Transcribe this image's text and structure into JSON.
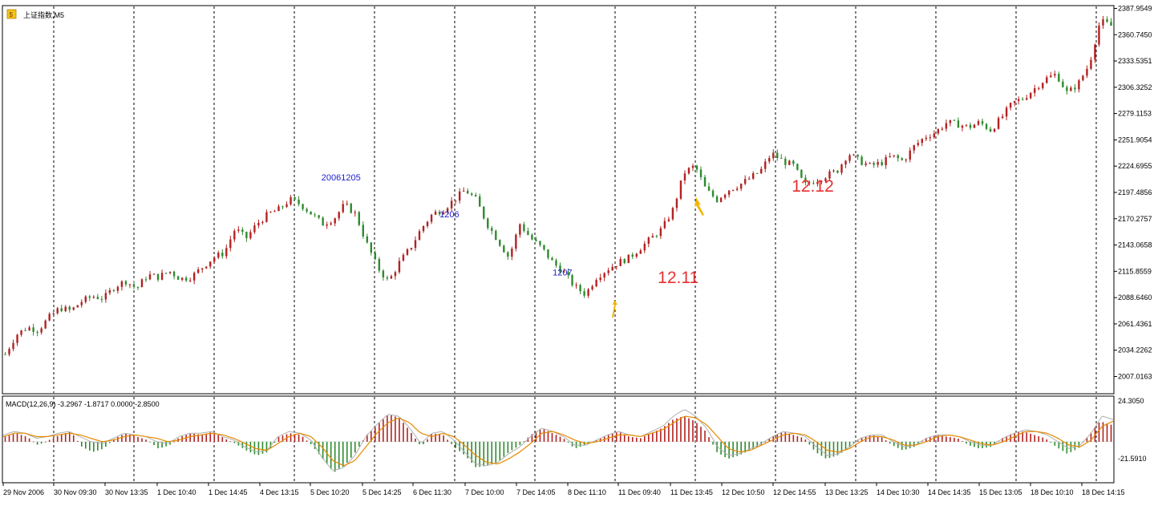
{
  "window": {
    "symbol_title": "上证指数,M5"
  },
  "colors": {
    "up": "#b22222",
    "down": "#2e8b2e",
    "signal_line": "#e68a00",
    "macd_line": "#b0b0b0",
    "annotation_red": "#e83030",
    "annotation_blue": "#2020d0",
    "arrow": "#f2b400",
    "grid": "#000000"
  },
  "chart_data": [
    {
      "type": "candlestick",
      "symbol": "上证指数",
      "timeframe": "M5",
      "y_ticks": [
        "2387.9549",
        "2360.7450",
        "2333.5351",
        "2306.3252",
        "2279.1153",
        "2251.9054",
        "2224.6955",
        "2197.4856",
        "2170.2757",
        "2143.0658",
        "2115.8559",
        "2088.6460",
        "2061.4361",
        "2034.2262",
        "2007.0163"
      ],
      "ylim": [
        1990,
        2390
      ],
      "x_ticks": [
        "29 Nov 2006",
        "30 Nov 09:30",
        "30 Nov 13:35",
        "1 Dec 10:40",
        "1 Dec 14:45",
        "4 Dec 13:15",
        "5 Dec 10:20",
        "5 Dec 14:25",
        "6 Dec 11:30",
        "7 Dec 10:00",
        "7 Dec 14:05",
        "8 Dec 11:10",
        "11 Dec 09:40",
        "11 Dec 13:45",
        "12 Dec 10:50",
        "12 Dec 14:55",
        "13 Dec 13:25",
        "14 Dec 10:30",
        "14 Dec 14:35",
        "15 Dec 13:05",
        "18 Dec 10:10",
        "18 Dec 14:15"
      ],
      "close_path": [
        2030,
        2050,
        2058,
        2055,
        2068,
        2078,
        2075,
        2085,
        2090,
        2088,
        2100,
        2106,
        2098,
        2112,
        2110,
        2116,
        2108,
        2110,
        2120,
        2130,
        2135,
        2160,
        2150,
        2165,
        2175,
        2180,
        2190,
        2185,
        2175,
        2165,
        2170,
        2185,
        2175,
        2145,
        2120,
        2105,
        2125,
        2140,
        2160,
        2175,
        2180,
        2190,
        2200,
        2190,
        2165,
        2148,
        2130,
        2165,
        2150,
        2140,
        2125,
        2115,
        2100,
        2092,
        2110,
        2118,
        2125,
        2130,
        2140,
        2150,
        2160,
        2180,
        2218,
        2225,
        2200,
        2190,
        2200,
        2205,
        2212,
        2220,
        2238,
        2230,
        2225,
        2205,
        2210,
        2215,
        2220,
        2238,
        2230,
        2225,
        2228,
        2235,
        2230,
        2245,
        2255,
        2260,
        2270,
        2268,
        2265,
        2270,
        2262,
        2275,
        2290,
        2295,
        2305,
        2315,
        2320,
        2300,
        2310,
        2330,
        2375,
        2370
      ],
      "annotations": [
        {
          "text": "20061205",
          "index": 31
        },
        {
          "text": "1206",
          "index": 40
        },
        {
          "text": "1207",
          "index": 50
        },
        {
          "text": "12.11",
          "index": 60
        },
        {
          "text": "12.12",
          "index": 70
        }
      ],
      "grid": "vertical dashed"
    },
    {
      "type": "macd",
      "label": "MACD(12,26,9) -3.2967 -1.8717 0.0000 -2.8500",
      "y_ticks": [
        "24.3050",
        "-21.5910"
      ],
      "ylim": [
        -21.591,
        24.305
      ],
      "histogram": [
        3,
        5,
        3,
        -2,
        1,
        4,
        6,
        -3,
        -6,
        -4,
        2,
        5,
        3,
        1,
        -4,
        -2,
        3,
        5,
        4,
        6,
        2,
        -1,
        -5,
        -8,
        -6,
        3,
        5,
        4,
        -2,
        -10,
        -18,
        -14,
        -6,
        4,
        10,
        16,
        14,
        6,
        -3,
        5,
        4,
        -3,
        -8,
        -15,
        -14,
        -12,
        -6,
        -2,
        4,
        8,
        5,
        2,
        -4,
        -2,
        1,
        4,
        6,
        3,
        2,
        5,
        8,
        13,
        15,
        12,
        6,
        -6,
        -10,
        -8,
        -5,
        -2,
        3,
        6,
        4,
        2,
        -6,
        -10,
        -8,
        -4,
        2,
        4,
        3,
        -2,
        -5,
        -3,
        2,
        4,
        3,
        2,
        -2,
        -4,
        -3,
        2,
        5,
        6,
        4,
        2,
        -3,
        -7,
        -4,
        4,
        12,
        10
      ],
      "macd_line": [
        4,
        6,
        5,
        2,
        3,
        5,
        6,
        3,
        0,
        -1,
        2,
        5,
        4,
        3,
        0,
        -1,
        3,
        5,
        5,
        6,
        3,
        1,
        -3,
        -6,
        -5,
        3,
        6,
        5,
        1,
        -9,
        -17,
        -15,
        -8,
        3,
        10,
        16,
        15,
        8,
        -1,
        5,
        6,
        1,
        -6,
        -13,
        -14,
        -12,
        -7,
        -3,
        3,
        8,
        6,
        3,
        -2,
        -2,
        1,
        4,
        6,
        4,
        3,
        6,
        9,
        15,
        19,
        15,
        8,
        -3,
        -8,
        -7,
        -4,
        -1,
        3,
        6,
        5,
        3,
        -3,
        -8,
        -7,
        -3,
        2,
        4,
        4,
        0,
        -3,
        -2,
        2,
        4,
        4,
        3,
        0,
        -2,
        -2,
        2,
        5,
        7,
        6,
        4,
        0,
        -4,
        -2,
        5,
        15,
        13
      ],
      "signal_line": [
        3,
        5,
        5,
        3,
        3,
        4,
        5,
        4,
        2,
        0,
        1,
        3,
        4,
        3,
        2,
        0,
        1,
        3,
        4,
        5,
        4,
        2,
        -1,
        -4,
        -5,
        -1,
        3,
        5,
        3,
        -3,
        -11,
        -14,
        -11,
        -3,
        5,
        11,
        14,
        11,
        5,
        3,
        5,
        3,
        -2,
        -8,
        -12,
        -13,
        -10,
        -6,
        -1,
        5,
        6,
        4,
        1,
        -1,
        0,
        2,
        4,
        4,
        3,
        5,
        7,
        11,
        15,
        14,
        10,
        3,
        -4,
        -6,
        -5,
        -2,
        1,
        4,
        5,
        4,
        0,
        -5,
        -6,
        -4,
        0,
        3,
        3,
        1,
        -2,
        -2,
        0,
        3,
        4,
        3,
        1,
        -1,
        -2,
        0,
        3,
        6,
        6,
        5,
        2,
        -2,
        -3,
        1,
        9,
        12
      ]
    }
  ]
}
